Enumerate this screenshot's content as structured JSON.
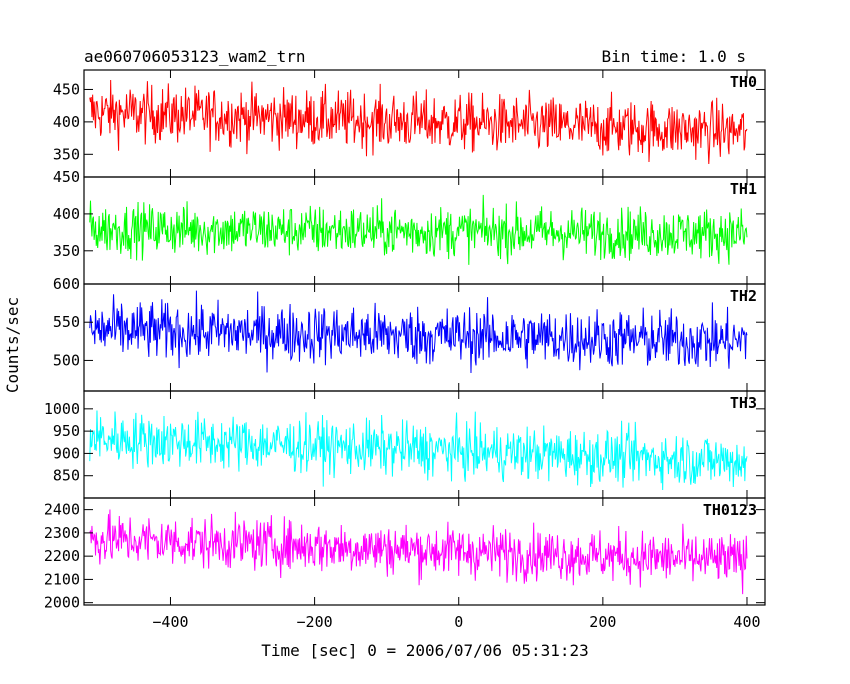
{
  "title_left": "ae060706053123_wam2_trn",
  "title_right": "Bin time: 1.0 s",
  "ylabel": "Counts/sec",
  "xlabel": "Time [sec] 0 = 2006/07/06 05:31:23",
  "chart_data": {
    "type": "line",
    "x_range": [
      -512,
      400
    ],
    "xlim": [
      -520,
      425
    ],
    "x_ticks": [
      -400,
      -200,
      0,
      200,
      400
    ],
    "x_tick_labels": [
      "−400",
      "−200",
      "0",
      "200",
      "400"
    ],
    "bin_time_s": 1.0,
    "panels": [
      {
        "name": "TH0",
        "color": "#ff0000",
        "ylim": [
          315,
          480
        ],
        "yticks": [
          350,
          400,
          450
        ],
        "start": 415,
        "end": 385,
        "spread": 22,
        "min": 328,
        "max": 478
      },
      {
        "name": "TH1",
        "color": "#00ff00",
        "ylim": [
          305,
          450
        ],
        "yticks": [
          350,
          400,
          450
        ],
        "start": 380,
        "end": 373,
        "spread": 17,
        "min": 322,
        "max": 450
      },
      {
        "name": "TH2",
        "color": "#0000ff",
        "ylim": [
          460,
          600
        ],
        "yticks": [
          500,
          550,
          600
        ],
        "start": 540,
        "end": 525,
        "spread": 19,
        "min": 478,
        "max": 600
      },
      {
        "name": "TH3",
        "color": "#00ffff",
        "ylim": [
          800,
          1040
        ],
        "yticks": [
          850,
          900,
          950,
          1000
        ],
        "start": 935,
        "end": 882,
        "spread": 30,
        "min": 818,
        "max": 1040
      },
      {
        "name": "TH0123",
        "color": "#ff00ff",
        "ylim": [
          1990,
          2450
        ],
        "yticks": [
          2000,
          2100,
          2200,
          2300,
          2400
        ],
        "start": 2275,
        "end": 2180,
        "spread": 55,
        "min": 2005,
        "max": 2450
      }
    ]
  }
}
